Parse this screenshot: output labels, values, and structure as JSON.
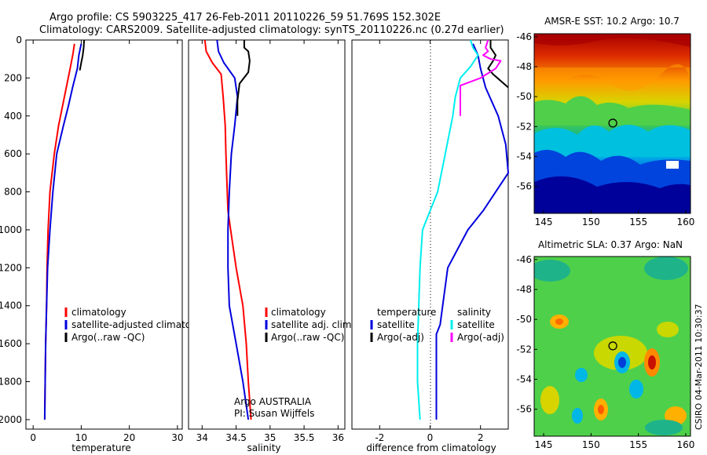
{
  "header": {
    "line1": "Argo profile: CS 5903225_417 26-Feb-2011 20110226_59 51.769S 152.302E",
    "line2": "Climatology: CARS2009. Satellite-adjusted climatology: synTS_20110226.nc (0.27d earlier)"
  },
  "colors": {
    "climatology": "#ff0000",
    "satellite": "#0000dd",
    "argo": "#000000",
    "cyan": "#00eeee",
    "magenta": "#ff00ff"
  },
  "chart_data": [
    {
      "type": "line",
      "id": "temperature",
      "xlabel": "temperature",
      "ylabel": "",
      "xlim": [
        -1.5,
        31
      ],
      "ylim": [
        2050,
        0
      ],
      "xticks": [
        0,
        10,
        20,
        30
      ],
      "yticks": [
        0,
        200,
        400,
        600,
        800,
        1000,
        1200,
        1400,
        1600,
        1800,
        2000
      ],
      "legend": [
        "climatology",
        "satellite-adjusted climatology",
        "Argo(..raw -QC)"
      ],
      "series": [
        {
          "name": "climatology",
          "color": "climatology",
          "points": [
            [
              8.6,
              20
            ],
            [
              8.3,
              70
            ],
            [
              7.7,
              150
            ],
            [
              6.9,
              250
            ],
            [
              6.1,
              350
            ],
            [
              5.3,
              450
            ],
            [
              4.4,
              600
            ],
            [
              3.5,
              800
            ],
            [
              3.1,
              1000
            ],
            [
              2.9,
              1200
            ],
            [
              2.8,
              1400
            ],
            [
              2.6,
              1600
            ],
            [
              2.5,
              1800
            ],
            [
              2.4,
              2000
            ]
          ]
        },
        {
          "name": "satellite-adjusted climatology",
          "color": "satellite",
          "points": [
            [
              10.0,
              20
            ],
            [
              9.5,
              80
            ],
            [
              9.2,
              150
            ],
            [
              8.2,
              250
            ],
            [
              7.3,
              350
            ],
            [
              6.3,
              450
            ],
            [
              4.9,
              600
            ],
            [
              4.1,
              800
            ],
            [
              3.5,
              1000
            ],
            [
              3.0,
              1200
            ],
            [
              2.8,
              1400
            ],
            [
              2.6,
              1600
            ],
            [
              2.5,
              1800
            ],
            [
              2.4,
              2000
            ]
          ]
        },
        {
          "name": "Argo(..raw -QC)",
          "color": "argo",
          "points": [
            [
              10.6,
              0
            ],
            [
              10.5,
              40
            ],
            [
              10.3,
              80
            ],
            [
              10.0,
              120
            ],
            [
              9.7,
              160
            ]
          ]
        }
      ]
    },
    {
      "type": "line",
      "id": "salinity",
      "xlabel": "salinity",
      "ylabel": "",
      "xlim": [
        33.8,
        36.1
      ],
      "ylim": [
        2050,
        0
      ],
      "xticks": [
        34,
        34.5,
        35,
        35.5,
        36
      ],
      "yticks": [],
      "legend": [
        "climatology",
        "satellite adj. clim.",
        "Argo(..raw -QC)"
      ],
      "annotation": [
        "Argo AUSTRALIA",
        "PI: Susan Wijffels"
      ],
      "series": [
        {
          "name": "climatology",
          "color": "climatology",
          "points": [
            [
              34.04,
              0
            ],
            [
              34.06,
              60
            ],
            [
              34.15,
              120
            ],
            [
              34.28,
              180
            ],
            [
              34.31,
              300
            ],
            [
              34.34,
              450
            ],
            [
              34.35,
              600
            ],
            [
              34.37,
              800
            ],
            [
              34.38,
              900
            ],
            [
              34.42,
              1000
            ],
            [
              34.5,
              1200
            ],
            [
              34.6,
              1400
            ],
            [
              34.65,
              1600
            ],
            [
              34.68,
              1800
            ],
            [
              34.72,
              2000
            ]
          ]
        },
        {
          "name": "satellite adj. clim.",
          "color": "satellite",
          "points": [
            [
              34.22,
              0
            ],
            [
              34.24,
              60
            ],
            [
              34.32,
              120
            ],
            [
              34.48,
              200
            ],
            [
              34.52,
              300
            ],
            [
              34.48,
              450
            ],
            [
              34.43,
              600
            ],
            [
              34.4,
              800
            ],
            [
              34.38,
              1000
            ],
            [
              34.38,
              1200
            ],
            [
              34.4,
              1400
            ],
            [
              34.5,
              1600
            ],
            [
              34.6,
              1800
            ],
            [
              34.68,
              2000
            ]
          ]
        },
        {
          "name": "Argo(..raw -QC)",
          "color": "argo",
          "points": [
            [
              34.62,
              0
            ],
            [
              34.62,
              40
            ],
            [
              34.68,
              60
            ],
            [
              34.7,
              110
            ],
            [
              34.68,
              170
            ],
            [
              34.55,
              230
            ],
            [
              34.52,
              320
            ],
            [
              34.52,
              400
            ]
          ]
        }
      ]
    },
    {
      "type": "line",
      "id": "difference",
      "xlabel": "difference from climatology",
      "ylabel": "",
      "xlim": [
        -3.1,
        3.1
      ],
      "ylim": [
        2050,
        0
      ],
      "xticks": [
        -2,
        0,
        2
      ],
      "yticks": [],
      "legend_temperature_title": "temperature",
      "legend_salinity_title": "salinity",
      "legend_temperature": [
        "satellite",
        "Argo(-adj)"
      ],
      "legend_salinity": [
        "satellite",
        "Argo(-adj)"
      ],
      "series": [
        {
          "name": "temperature satellite",
          "color": "satellite",
          "points": [
            [
              1.7,
              20
            ],
            [
              1.9,
              80
            ],
            [
              2.0,
              150
            ],
            [
              2.2,
              250
            ],
            [
              2.7,
              400
            ],
            [
              3.0,
              550
            ],
            [
              3.1,
              700
            ],
            [
              2.6,
              800
            ],
            [
              2.1,
              900
            ],
            [
              1.5,
              1000
            ],
            [
              1.1,
              1100
            ],
            [
              0.7,
              1200
            ],
            [
              0.5,
              1400
            ],
            [
              0.4,
              1500
            ],
            [
              0.25,
              1550
            ],
            [
              0.25,
              2000
            ]
          ]
        },
        {
          "name": "temperature Argo(-adj)",
          "color": "argo",
          "points": [
            [
              2.4,
              0
            ],
            [
              2.4,
              40
            ],
            [
              2.6,
              80
            ],
            [
              2.5,
              110
            ],
            [
              2.3,
              150
            ],
            [
              2.5,
              180
            ],
            [
              3.1,
              250
            ]
          ]
        },
        {
          "name": "salinity satellite",
          "color": "cyan",
          "points": [
            [
              1.6,
              0
            ],
            [
              1.7,
              40
            ],
            [
              1.9,
              80
            ],
            [
              1.6,
              140
            ],
            [
              1.2,
              200
            ],
            [
              1.0,
              300
            ],
            [
              0.9,
              400
            ],
            [
              0.6,
              600
            ],
            [
              0.3,
              800
            ],
            [
              0.0,
              900
            ],
            [
              -0.3,
              1000
            ],
            [
              -0.4,
              1200
            ],
            [
              -0.45,
              1400
            ],
            [
              -0.5,
              1600
            ],
            [
              -0.5,
              1800
            ],
            [
              -0.4,
              2000
            ]
          ]
        },
        {
          "name": "salinity Argo(-adj)",
          "color": "magenta",
          "points": [
            [
              2.3,
              0
            ],
            [
              2.2,
              40
            ],
            [
              2.3,
              60
            ],
            [
              2.1,
              80
            ],
            [
              2.4,
              100
            ],
            [
              2.8,
              110
            ],
            [
              2.6,
              150
            ],
            [
              2.0,
              200
            ],
            [
              1.2,
              240
            ],
            [
              1.2,
              400
            ]
          ]
        }
      ]
    },
    {
      "type": "heatmap",
      "id": "sst-map",
      "title": "AMSR-E SST: 10.2 Argo: 10.7",
      "xlim": [
        144,
        160.5
      ],
      "ylim": [
        -57.8,
        -45.8
      ],
      "xticks": [
        145,
        150,
        155,
        160
      ],
      "yticks": [
        -46,
        -48,
        -50,
        -52,
        -54,
        -56
      ],
      "marker": [
        152.3,
        -51.77
      ]
    },
    {
      "type": "heatmap",
      "id": "sla-map",
      "title": "Altimetric SLA: 0.37 Argo: NaN",
      "xlim": [
        144,
        160.5
      ],
      "ylim": [
        -57.8,
        -45.8
      ],
      "xticks": [
        145,
        150,
        155,
        160
      ],
      "yticks": [
        -46,
        -48,
        -50,
        -52,
        -54,
        -56
      ],
      "marker": [
        152.3,
        -51.77
      ]
    }
  ],
  "footer": {
    "credit": "CSIRO 04-Mar-2011 10:30:37"
  }
}
